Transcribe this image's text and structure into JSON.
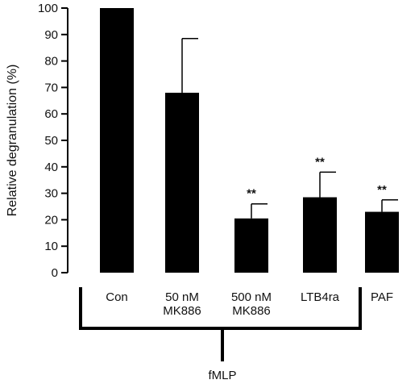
{
  "chart_data": {
    "type": "bar",
    "title": "",
    "xlabel": "",
    "ylabel": "Relative degranulation (%)",
    "ylim": [
      0,
      100
    ],
    "yticks": [
      0,
      10,
      20,
      30,
      40,
      50,
      60,
      70,
      80,
      90,
      100
    ],
    "grid": false,
    "legend": "none",
    "bar_color": "#000000",
    "categories": [
      {
        "line1": "Con",
        "line2": ""
      },
      {
        "line1": "50  nM",
        "line2": "MK886"
      },
      {
        "line1": "500  nM",
        "line2": "MK886"
      },
      {
        "line1": "LTB4ra",
        "line2": ""
      },
      {
        "line1": "PAF",
        "line2": ""
      }
    ],
    "values": [
      100,
      68,
      20.5,
      28.5,
      23
    ],
    "errors": [
      0,
      20.5,
      5.5,
      9.5,
      4.5
    ],
    "significance": [
      "",
      "",
      "**",
      "**",
      "**"
    ],
    "group": {
      "label": "fMLP",
      "spans": [
        0,
        3
      ]
    }
  }
}
